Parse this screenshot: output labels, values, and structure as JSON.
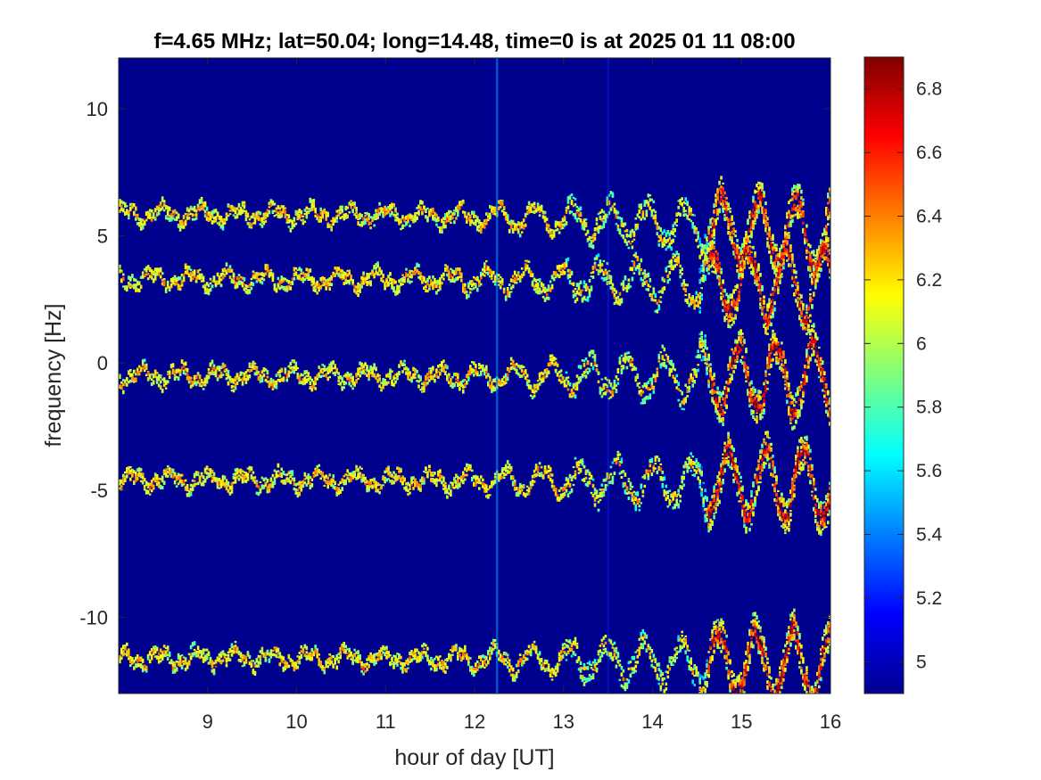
{
  "chart_data": {
    "type": "heatmap",
    "title": "f=4.65 MHz;  lat=50.04; long=14.48, time=0 is at 2025 01 11 08:00",
    "xlabel": "hour of day [UT]",
    "ylabel": "frequency [Hz]",
    "xlim": [
      8,
      16
    ],
    "ylim": [
      -13,
      12
    ],
    "xticks": [
      9,
      10,
      11,
      12,
      13,
      14,
      15,
      16
    ],
    "yticks": [
      -10,
      -5,
      0,
      5,
      10
    ],
    "colormap": "jet",
    "clim": [
      4.9,
      6.9
    ],
    "colorbar_ticks": [
      5,
      5.2,
      5.4,
      5.6,
      5.8,
      6,
      6.2,
      6.4,
      6.6,
      6.8
    ],
    "background_value": 4.95,
    "traces": [
      {
        "center_hz": 5.85,
        "end_hz": 5.0
      },
      {
        "center_hz": 3.3,
        "end_hz": 3.1
      },
      {
        "center_hz": -0.5,
        "end_hz": -0.6
      },
      {
        "center_hz": -4.6,
        "end_hz": -4.8
      },
      {
        "center_hz": -11.6,
        "end_hz": -11.9
      }
    ],
    "vertical_streaks_hour": [
      12.25,
      13.5
    ],
    "grid": false,
    "colors": {
      "background": "#00008f",
      "frame": "#262626"
    }
  }
}
